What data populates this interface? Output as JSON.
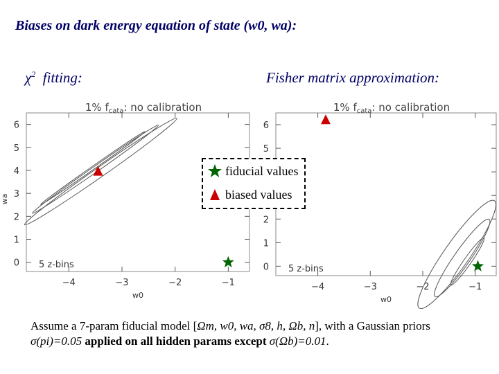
{
  "slide": {
    "title": "Biases on dark energy equation of state (w0, wa):",
    "left_heading": "χ² fitting:",
    "left_heading_sym": "χ",
    "left_heading_sup": "2",
    "left_heading_rest": "fitting:",
    "right_heading": "Fisher matrix approximation:",
    "caption_parts": [
      "Assume a 7-param fiducial model [",
      "Ωm, w0, wa, σ8, h, Ωb, n",
      "], with a Gaussian priors",
      "σ(pi)=0.05",
      " applied on all hidden params except ",
      "σ(Ωb)=0.01",
      "."
    ]
  },
  "legend": {
    "fiducial_label": "fiducial values",
    "biased_label": "biased values",
    "fiducial_color": "#006400",
    "biased_color": "#cc0000"
  },
  "chart_data": [
    {
      "type": "scatter",
      "title": "1% f_cata: no calibration",
      "title_main": "1% f",
      "title_sub": "cata",
      "title_rest": ": no calibration",
      "annotation": "5 z-bins",
      "xlabel": "w0",
      "ylabel": "wa",
      "xlim": [
        -4.8,
        -0.6
      ],
      "ylim": [
        -0.4,
        6.5
      ],
      "xticks": [
        -4,
        -3,
        -2,
        -1
      ],
      "yticks": [
        0,
        1,
        2,
        3,
        4,
        5,
        6
      ],
      "fiducial": {
        "x": -1.0,
        "y": 0.0
      },
      "biased": {
        "x": -3.45,
        "y": 3.95
      },
      "contour_angle_deg": -35,
      "contours": [
        {
          "cx": -3.4,
          "cy": 3.95,
          "a": 1.75,
          "b": 0.09
        },
        {
          "cx": -3.5,
          "cy": 4.05,
          "a": 1.45,
          "b": 0.055
        },
        {
          "cx": -3.55,
          "cy": 4.1,
          "a": 1.2,
          "b": 0.03
        }
      ],
      "grid": false
    },
    {
      "type": "scatter",
      "title": "1% f_cata: no calibration",
      "title_main": "1% f",
      "title_sub": "cata",
      "title_rest": ": no calibration",
      "annotation": "5 z-bins",
      "xlabel": "w0",
      "ylabel": "wa",
      "xlim": [
        -4.8,
        -0.6
      ],
      "ylim": [
        -0.4,
        6.5
      ],
      "xticks": [
        -4,
        -3,
        -2,
        -1
      ],
      "yticks": [
        0,
        1,
        2,
        3,
        4,
        5,
        6
      ],
      "fiducial": {
        "x": -0.95,
        "y": 0.0
      },
      "biased": {
        "x": -3.85,
        "y": 6.2
      },
      "contour_angle_deg": -55,
      "contours": [
        {
          "cx": -1.35,
          "cy": 0.5,
          "a": 1.25,
          "b": 0.24
        },
        {
          "cx": -1.25,
          "cy": 0.35,
          "a": 0.9,
          "b": 0.15
        },
        {
          "cx": -1.15,
          "cy": 0.2,
          "a": 0.55,
          "b": 0.07
        }
      ],
      "grid": false
    }
  ]
}
